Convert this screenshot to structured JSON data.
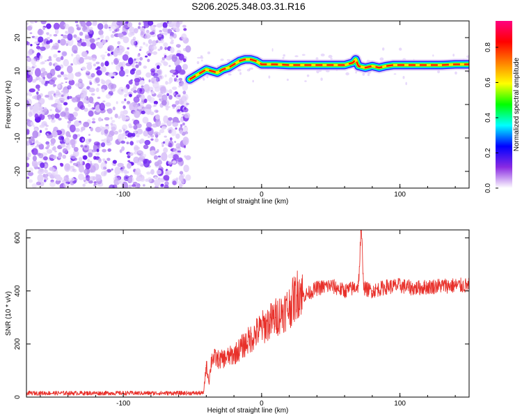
{
  "title": "S206.2025.348.03.31.R16",
  "chart_data": [
    {
      "type": "heatmap",
      "xlabel": "Height of straight line (km)",
      "ylabel": "Frequency (Hz)",
      "xlim": [
        -170,
        150
      ],
      "ylim": [
        -25,
        25
      ],
      "xticks": [
        -100,
        0,
        100
      ],
      "yticks": [
        -20,
        -10,
        0,
        10,
        20
      ],
      "noise_region_x": [
        -170,
        -50
      ],
      "ridge": {
        "x": [
          -52,
          -48,
          -44,
          -40,
          -36,
          -32,
          -28,
          -24,
          -20,
          -16,
          -12,
          -8,
          -4,
          0,
          10,
          20,
          30,
          40,
          50,
          60,
          66,
          68,
          70,
          75,
          80,
          85,
          90,
          95,
          100,
          110,
          120,
          130,
          140,
          150
        ],
        "freq": [
          7.5,
          8.5,
          9.5,
          10.5,
          10.0,
          9.5,
          10.5,
          11.0,
          12.0,
          13.0,
          13.5,
          13.5,
          13.0,
          12.0,
          12.0,
          11.8,
          11.8,
          11.8,
          11.8,
          11.8,
          12.5,
          13.5,
          11.5,
          11.0,
          11.5,
          11.0,
          11.5,
          11.8,
          11.8,
          11.8,
          11.8,
          11.8,
          12.0,
          12.0
        ]
      },
      "colorbar": {
        "label": "Normalized spectral amplitude",
        "ticks": [
          "0.0",
          "0.2",
          "0.4",
          "0.6",
          "0.8"
        ],
        "range": [
          0,
          0.95
        ],
        "colors": [
          "#ffffff",
          "#8a2be2",
          "#0000ff",
          "#00ffff",
          "#00ff00",
          "#ffff00",
          "#ff8000",
          "#ff0000",
          "#ff0080"
        ]
      }
    },
    {
      "type": "line",
      "xlabel": "Height of straight line (km)",
      "ylabel": "SNR (10 * v/v)",
      "xlim": [
        -170,
        150
      ],
      "ylim": [
        0,
        630
      ],
      "xticks": [
        -100,
        0,
        100
      ],
      "yticks": [
        0,
        200,
        400,
        600
      ],
      "series": [
        {
          "name": "SNR",
          "color": "#e8302a",
          "x": [
            -170,
            -140,
            -110,
            -80,
            -50,
            -42,
            -40,
            -38,
            -36,
            -30,
            -20,
            -10,
            0,
            10,
            20,
            26,
            28,
            30,
            40,
            50,
            60,
            66,
            70,
            72,
            74,
            80,
            90,
            100,
            110,
            120,
            130,
            140,
            150
          ],
          "y": [
            15,
            15,
            15,
            15,
            15,
            15,
            120,
            60,
            150,
            140,
            160,
            210,
            260,
            300,
            340,
            390,
            410,
            380,
            410,
            420,
            400,
            410,
            420,
            630,
            410,
            400,
            415,
            420,
            410,
            415,
            420,
            420,
            420
          ]
        }
      ]
    }
  ]
}
